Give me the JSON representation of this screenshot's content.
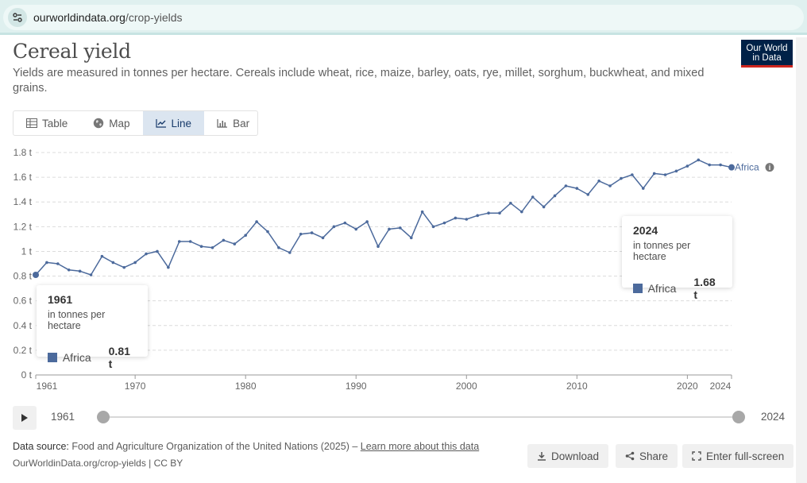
{
  "browser": {
    "url_domain": "ourworldindata.org",
    "url_path": "/crop-yields"
  },
  "header": {
    "title": "Cereal yield",
    "subtitle": "Yields are measured in tonnes per hectare. Cereals include wheat, rice, maize, barley, oats, rye, millet, sorghum, buckwheat, and mixed grains.",
    "logo_line1": "Our World",
    "logo_line2": "in Data"
  },
  "tabs": [
    {
      "label": "Table",
      "icon": "table-icon",
      "active": false
    },
    {
      "label": "Map",
      "icon": "globe-icon",
      "active": false
    },
    {
      "label": "Line",
      "icon": "line-chart-icon",
      "active": true
    },
    {
      "label": "Bar",
      "icon": "bar-chart-icon",
      "active": false
    }
  ],
  "chart_data": {
    "type": "line",
    "ylim": [
      0,
      1.8
    ],
    "yticks": [
      0,
      0.2,
      0.4,
      0.6,
      0.8,
      1,
      1.2,
      1.4,
      1.6,
      1.8
    ],
    "ytick_labels": [
      "0 t",
      "0.2 t",
      "0.4 t",
      "0.6 t",
      "0.8 t",
      "1 t",
      "1.2 t",
      "1.4 t",
      "1.6 t",
      "1.8 t"
    ],
    "xlim": [
      1961,
      2024
    ],
    "xticks": [
      1961,
      1970,
      1980,
      1990,
      2000,
      2010,
      2020,
      2024
    ],
    "xtick_labels": [
      "1961",
      "1970",
      "1980",
      "1990",
      "2000",
      "2010",
      "2020",
      "2024"
    ],
    "grid": true,
    "series": [
      {
        "name": "Africa",
        "color": "#4c6a9c",
        "x": [
          1961,
          1962,
          1963,
          1964,
          1965,
          1966,
          1967,
          1968,
          1969,
          1970,
          1971,
          1972,
          1973,
          1974,
          1975,
          1976,
          1977,
          1978,
          1979,
          1980,
          1981,
          1982,
          1983,
          1984,
          1985,
          1986,
          1987,
          1988,
          1989,
          1990,
          1991,
          1992,
          1993,
          1994,
          1995,
          1996,
          1997,
          1998,
          1999,
          2000,
          2001,
          2002,
          2003,
          2004,
          2005,
          2006,
          2007,
          2008,
          2009,
          2010,
          2011,
          2012,
          2013,
          2014,
          2015,
          2016,
          2017,
          2018,
          2019,
          2020,
          2021,
          2022,
          2023,
          2024
        ],
        "values": [
          0.81,
          0.91,
          0.9,
          0.85,
          0.84,
          0.81,
          0.96,
          0.91,
          0.87,
          0.91,
          0.98,
          1.0,
          0.87,
          1.08,
          1.08,
          1.04,
          1.03,
          1.09,
          1.06,
          1.13,
          1.24,
          1.16,
          1.03,
          0.99,
          1.14,
          1.15,
          1.11,
          1.2,
          1.23,
          1.18,
          1.24,
          1.04,
          1.18,
          1.19,
          1.11,
          1.32,
          1.2,
          1.23,
          1.27,
          1.26,
          1.29,
          1.31,
          1.31,
          1.39,
          1.32,
          1.44,
          1.36,
          1.45,
          1.53,
          1.51,
          1.46,
          1.57,
          1.53,
          1.59,
          1.62,
          1.51,
          1.63,
          1.62,
          1.65,
          1.69,
          1.74,
          1.7,
          1.7,
          1.68
        ]
      }
    ]
  },
  "tooltips": [
    {
      "year": "1961",
      "unit": "in tonnes per hectare",
      "entity": "Africa",
      "value": "0.81 t"
    },
    {
      "year": "2024",
      "unit": "in tonnes per hectare",
      "entity": "Africa",
      "value": "1.68 t"
    }
  ],
  "timeline": {
    "start_label": "1961",
    "end_label": "2024",
    "start_fraction": 0,
    "end_fraction": 1
  },
  "footer": {
    "source_label": "Data source:",
    "source_text": "Food and Agriculture Organization of the United Nations (2025) –",
    "learn_more": "Learn more about this data",
    "url_license": "OurWorldinData.org/crop-yields | CC BY",
    "download_label": "Download",
    "share_label": "Share",
    "fullscreen_label": "Enter full-screen"
  }
}
